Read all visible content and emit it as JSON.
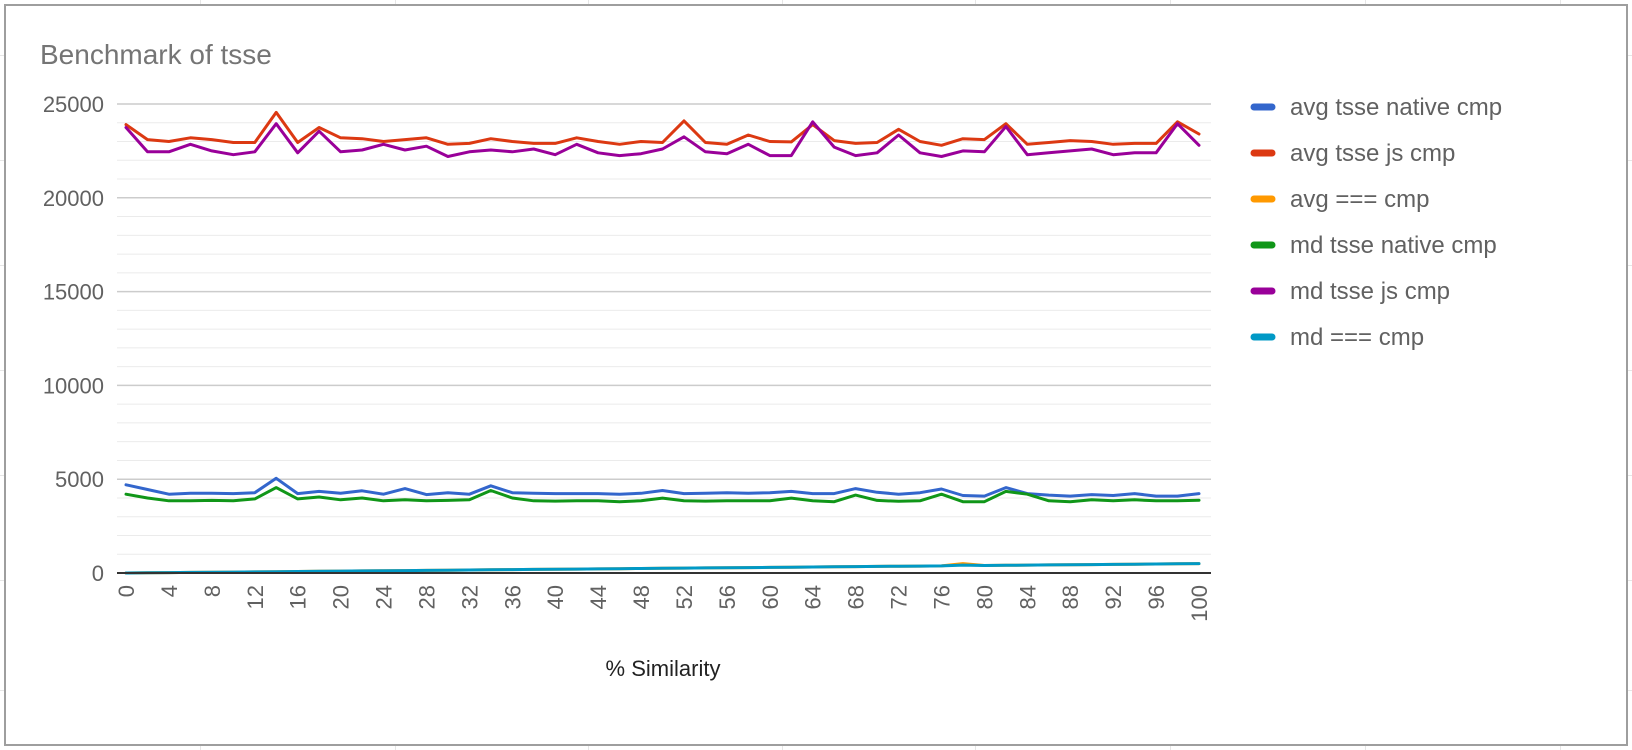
{
  "chart_data": {
    "type": "line",
    "title": "Benchmark of tsse",
    "xlabel": "% Similarity",
    "ylabel": "",
    "ylim": [
      0,
      25000
    ],
    "yticks": [
      0,
      5000,
      10000,
      15000,
      20000,
      25000
    ],
    "grid": true,
    "legend_position": "right",
    "x": [
      0,
      2,
      4,
      6,
      8,
      10,
      12,
      14,
      16,
      18,
      20,
      22,
      24,
      26,
      28,
      30,
      32,
      34,
      36,
      38,
      40,
      42,
      44,
      46,
      48,
      50,
      52,
      54,
      56,
      58,
      60,
      62,
      64,
      66,
      68,
      70,
      72,
      74,
      76,
      78,
      80,
      82,
      84,
      86,
      88,
      90,
      92,
      94,
      96,
      98,
      100
    ],
    "xtick_labels": [
      "0",
      "4",
      "8",
      "12",
      "16",
      "20",
      "24",
      "28",
      "32",
      "36",
      "40",
      "44",
      "48",
      "52",
      "56",
      "60",
      "64",
      "68",
      "72",
      "76",
      "80",
      "84",
      "88",
      "92",
      "96",
      "100"
    ],
    "series": [
      {
        "name": "avg tsse native cmp",
        "color": "#3366cc",
        "values": [
          4700,
          4450,
          4200,
          4250,
          4250,
          4230,
          4280,
          5050,
          4230,
          4350,
          4250,
          4380,
          4200,
          4500,
          4180,
          4280,
          4200,
          4650,
          4280,
          4250,
          4230,
          4230,
          4230,
          4200,
          4250,
          4400,
          4230,
          4250,
          4280,
          4250,
          4280,
          4350,
          4230,
          4230,
          4500,
          4300,
          4200,
          4280,
          4480,
          4130,
          4100,
          4550,
          4230,
          4150,
          4100,
          4180,
          4130,
          4230,
          4100,
          4100,
          4230
        ]
      },
      {
        "name": "avg tsse js cmp",
        "color": "#dc3912",
        "values": [
          23900,
          23100,
          23000,
          23200,
          23100,
          22950,
          22950,
          24550,
          22950,
          23750,
          23200,
          23150,
          23000,
          23100,
          23200,
          22850,
          22900,
          23150,
          23000,
          22900,
          22900,
          23200,
          23000,
          22850,
          23000,
          22950,
          24100,
          22950,
          22850,
          23350,
          23000,
          22980,
          23900,
          23050,
          22900,
          22950,
          23650,
          23000,
          22800,
          23150,
          23100,
          23950,
          22850,
          22950,
          23050,
          23000,
          22850,
          22900,
          22900,
          24050,
          23400
        ]
      },
      {
        "name": "avg === cmp",
        "color": "#ff9900",
        "values": [
          0,
          10,
          20,
          30,
          40,
          50,
          60,
          70,
          80,
          90,
          100,
          110,
          120,
          130,
          140,
          150,
          160,
          170,
          180,
          190,
          200,
          210,
          220,
          230,
          240,
          250,
          260,
          270,
          280,
          290,
          300,
          310,
          320,
          330,
          340,
          350,
          360,
          370,
          380,
          500,
          400,
          410,
          420,
          430,
          440,
          450,
          460,
          470,
          480,
          490,
          500
        ]
      },
      {
        "name": "md tsse native cmp",
        "color": "#109618",
        "values": [
          4200,
          4000,
          3850,
          3850,
          3870,
          3850,
          3950,
          4550,
          3950,
          4050,
          3900,
          4000,
          3850,
          3900,
          3850,
          3870,
          3900,
          4400,
          4000,
          3850,
          3830,
          3850,
          3850,
          3800,
          3850,
          3990,
          3850,
          3830,
          3850,
          3850,
          3850,
          3990,
          3850,
          3800,
          4150,
          3870,
          3820,
          3850,
          4200,
          3800,
          3800,
          4350,
          4200,
          3850,
          3800,
          3900,
          3850,
          3900,
          3850,
          3850,
          3880
        ]
      },
      {
        "name": "md tsse js cmp",
        "color": "#990099",
        "values": [
          23750,
          22450,
          22450,
          22850,
          22500,
          22300,
          22450,
          23950,
          22400,
          23550,
          22450,
          22550,
          22850,
          22550,
          22750,
          22200,
          22450,
          22550,
          22450,
          22600,
          22300,
          22850,
          22400,
          22250,
          22350,
          22600,
          23250,
          22450,
          22350,
          22850,
          22250,
          22250,
          24050,
          22700,
          22250,
          22400,
          23350,
          22400,
          22200,
          22500,
          22450,
          23800,
          22300,
          22400,
          22500,
          22600,
          22300,
          22400,
          22400,
          23950,
          22800
        ]
      },
      {
        "name": "md === cmp",
        "color": "#0099c6",
        "values": [
          0,
          10,
          20,
          30,
          40,
          50,
          60,
          70,
          80,
          90,
          100,
          110,
          120,
          130,
          140,
          150,
          160,
          170,
          180,
          190,
          200,
          210,
          220,
          230,
          240,
          250,
          260,
          270,
          280,
          290,
          300,
          310,
          320,
          330,
          340,
          350,
          360,
          370,
          380,
          420,
          400,
          410,
          420,
          430,
          440,
          450,
          460,
          470,
          480,
          490,
          500
        ]
      }
    ]
  }
}
